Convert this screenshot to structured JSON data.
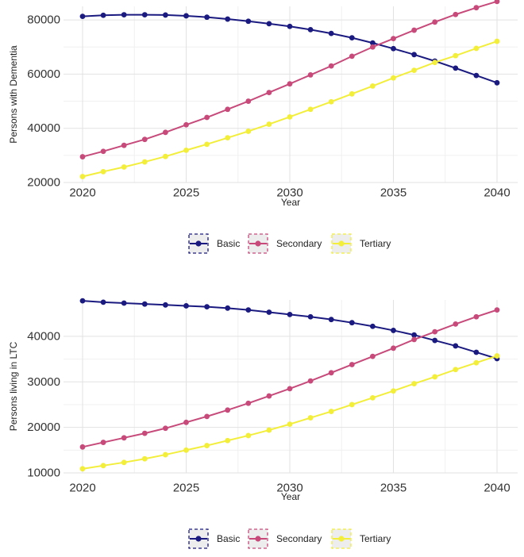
{
  "colors": {
    "Basic": "#1a1a80",
    "Secondary": "#c74a7a",
    "Tertiary": "#f2ee3a",
    "grid_major": "#e2e2e2",
    "grid_minor": "#f0f0f0"
  },
  "chart_data": [
    {
      "type": "line",
      "title": "",
      "xlabel": "Year",
      "ylabel": "Persons with Dementia",
      "x": [
        2020,
        2021,
        2022,
        2023,
        2024,
        2025,
        2026,
        2027,
        2028,
        2029,
        2030,
        2031,
        2032,
        2033,
        2034,
        2035,
        2036,
        2037,
        2038,
        2039,
        2040
      ],
      "xlim": [
        2020,
        2040
      ],
      "ylim": [
        20000,
        85000
      ],
      "xticks": [
        2020,
        2025,
        2030,
        2035,
        2040
      ],
      "xtick_labels": [
        "2020",
        "2025",
        "2030",
        "2035",
        "2040"
      ],
      "yticks": [
        20000,
        40000,
        60000,
        80000
      ],
      "ytick_labels": [
        "20000",
        "40000",
        "60000",
        "80000"
      ],
      "grid": true,
      "legend_position": "bottom",
      "series": [
        {
          "name": "Basic",
          "values": [
            81300,
            81700,
            81900,
            81900,
            81800,
            81500,
            81000,
            80300,
            79500,
            78600,
            77600,
            76400,
            75000,
            73400,
            71500,
            69400,
            67200,
            64800,
            62200,
            59500,
            56800
          ]
        },
        {
          "name": "Secondary",
          "values": [
            29500,
            31500,
            33700,
            35900,
            38500,
            41300,
            44000,
            47000,
            50000,
            53200,
            56400,
            59700,
            63000,
            66600,
            70000,
            73100,
            76200,
            79200,
            82000,
            84500,
            86800
          ]
        },
        {
          "name": "Tertiary",
          "values": [
            22200,
            24000,
            25700,
            27600,
            29600,
            31900,
            34100,
            36500,
            38900,
            41500,
            44200,
            47000,
            49800,
            52700,
            55600,
            58600,
            61400,
            64300,
            66800,
            69500,
            72100
          ]
        }
      ]
    },
    {
      "type": "line",
      "title": "",
      "xlabel": "Year",
      "ylabel": "Persons living in LTC",
      "x": [
        2020,
        2021,
        2022,
        2023,
        2024,
        2025,
        2026,
        2027,
        2028,
        2029,
        2030,
        2031,
        2032,
        2033,
        2034,
        2035,
        2036,
        2037,
        2038,
        2039,
        2040
      ],
      "xlim": [
        2020,
        2040
      ],
      "ylim": [
        10000,
        48000
      ],
      "xticks": [
        2020,
        2025,
        2030,
        2035,
        2040
      ],
      "xtick_labels": [
        "2020",
        "2025",
        "2030",
        "2035",
        "2040"
      ],
      "yticks": [
        10000,
        20000,
        30000,
        40000
      ],
      "ytick_labels": [
        "10000",
        "20000",
        "30000",
        "40000"
      ],
      "grid": true,
      "legend_position": "bottom",
      "series": [
        {
          "name": "Basic",
          "values": [
            47800,
            47500,
            47300,
            47100,
            46900,
            46700,
            46500,
            46200,
            45800,
            45300,
            44800,
            44300,
            43700,
            43000,
            42200,
            41300,
            40300,
            39100,
            37900,
            36500,
            35100
          ]
        },
        {
          "name": "Secondary",
          "values": [
            15700,
            16700,
            17700,
            18700,
            19800,
            21100,
            22400,
            23800,
            25300,
            26900,
            28500,
            30200,
            32000,
            33800,
            35600,
            37400,
            39300,
            41000,
            42700,
            44300,
            45800
          ]
        },
        {
          "name": "Tertiary",
          "values": [
            10900,
            11600,
            12300,
            13100,
            14000,
            15000,
            16000,
            17100,
            18200,
            19400,
            20700,
            22100,
            23500,
            25000,
            26500,
            28000,
            29600,
            31100,
            32700,
            34200,
            35700
          ]
        }
      ]
    }
  ]
}
